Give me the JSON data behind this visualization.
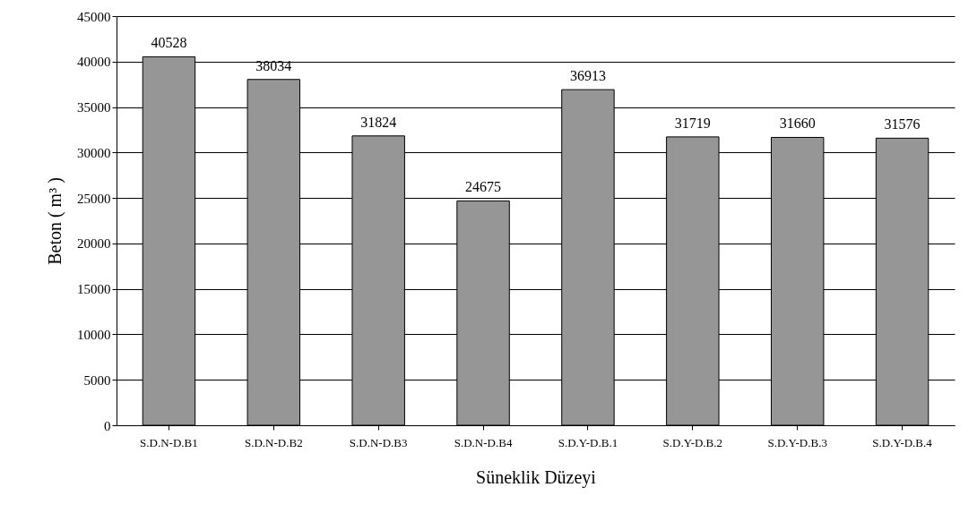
{
  "chart_data": {
    "type": "bar",
    "xlabel": "Süneklik Düzeyi",
    "ylabel": "Beton ( m³ )",
    "categories": [
      "S.D.N-D.B1",
      "S.D.N-D.B2",
      "S.D.N-D.B3",
      "S.D.N-D.B4",
      "S.D.Y-D.B.1",
      "S.D.Y-D.B.2",
      "S.D.Y-D.B.3",
      "S.D.Y-D.B.4"
    ],
    "values": [
      40528,
      38034,
      31824,
      24675,
      36913,
      31719,
      31660,
      31576
    ],
    "color": "#969696",
    "data_labels": true,
    "ylim": [
      0,
      45000
    ],
    "yticks": [
      0,
      5000,
      10000,
      15000,
      20000,
      25000,
      30000,
      35000,
      40000,
      45000
    ],
    "grid": "y"
  }
}
